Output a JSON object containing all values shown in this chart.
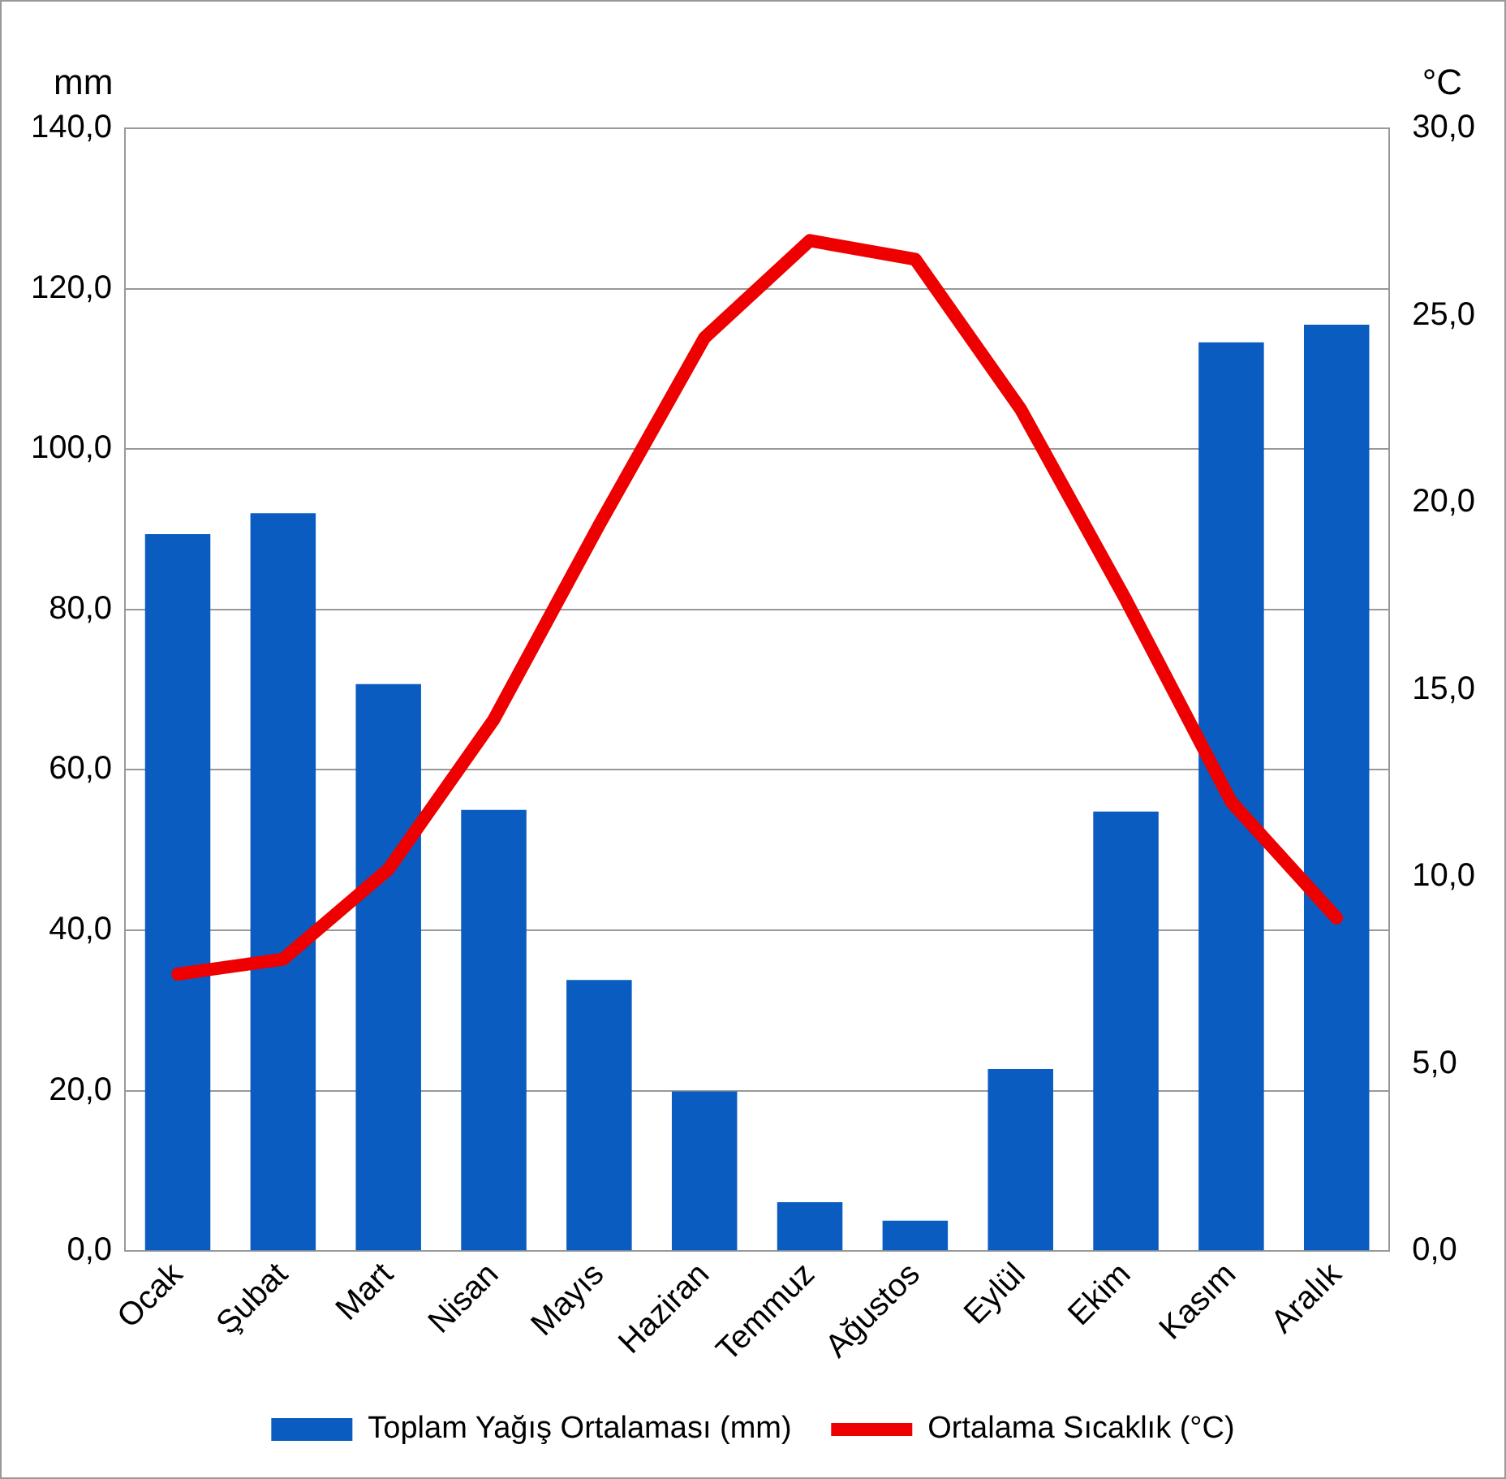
{
  "chart_data": {
    "type": "bar",
    "ylabel": "mm",
    "y2label": "°C",
    "categories": [
      "Ocak",
      "Şubat",
      "Mart",
      "Nisan",
      "Mayıs",
      "Haziran",
      "Temmuz",
      "Ağustos",
      "Eylül",
      "Ekim",
      "Kasım",
      "Aralık"
    ],
    "series": [
      {
        "name": "Toplam Yağış Ortalaması (mm)",
        "color": "#0a5cc0",
        "values": [
          89.4,
          92.0,
          70.7,
          55.0,
          33.8,
          19.9,
          6.1,
          3.8,
          22.7,
          54.8,
          113.3,
          115.5
        ]
      },
      {
        "name": "Ortalama Sıcaklık (°C)",
        "type": "line",
        "axis": "y2",
        "color": "#ee0000",
        "values": [
          7.4,
          7.8,
          10.2,
          14.2,
          19.4,
          24.4,
          27.0,
          26.5,
          22.5,
          17.4,
          12.0,
          8.9
        ]
      }
    ],
    "ylim": [
      0,
      140
    ],
    "yticks": [
      {
        "value": 0,
        "label": "0,0"
      },
      {
        "value": 20,
        "label": "20,0"
      },
      {
        "value": 40,
        "label": "40,0"
      },
      {
        "value": 60,
        "label": "60,0"
      },
      {
        "value": 80,
        "label": "80,0"
      },
      {
        "value": 100,
        "label": "100,0"
      },
      {
        "value": 120,
        "label": "120,0"
      },
      {
        "value": 140,
        "label": "140,0"
      }
    ],
    "y2lim": [
      0,
      30
    ],
    "y2ticks": [
      {
        "value": 0,
        "label": "0,0"
      },
      {
        "value": 5,
        "label": "5,0"
      },
      {
        "value": 10,
        "label": "10,0"
      },
      {
        "value": 15,
        "label": "15,0"
      },
      {
        "value": 20,
        "label": "20,0"
      },
      {
        "value": 25,
        "label": "25,0"
      },
      {
        "value": 30,
        "label": "30,0"
      }
    ],
    "grid": "y",
    "legend": "bottom",
    "marker": "none",
    "line_style": "solid"
  }
}
